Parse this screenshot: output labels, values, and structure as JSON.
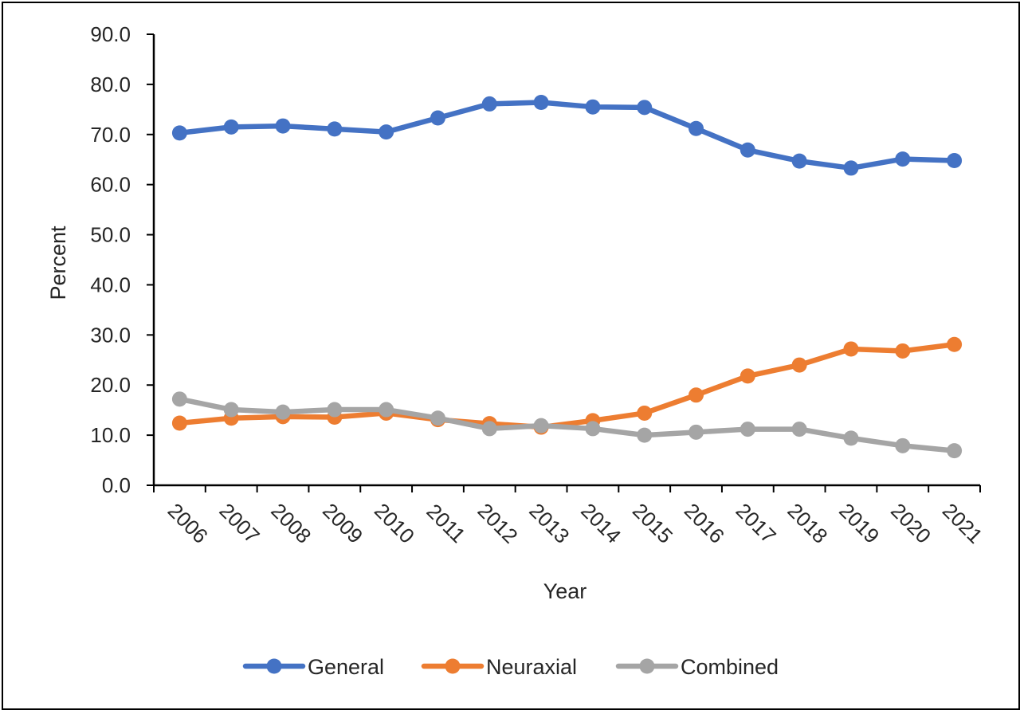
{
  "chart_data": {
    "type": "line",
    "title": "",
    "xlabel": "Year",
    "ylabel": "Percent",
    "ylim": [
      0,
      90
    ],
    "yticks": [
      "0.0",
      "10.0",
      "20.0",
      "30.0",
      "40.0",
      "50.0",
      "60.0",
      "70.0",
      "80.0",
      "90.0"
    ],
    "categories": [
      "2006",
      "2007",
      "2008",
      "2009",
      "2010",
      "2011",
      "2012",
      "2013",
      "2014",
      "2015",
      "2016",
      "2017",
      "2018",
      "2019",
      "2020",
      "2021"
    ],
    "grid": false,
    "legend_position": "bottom",
    "series": [
      {
        "name": "General",
        "color": "#4472C4",
        "values": [
          70.3,
          71.5,
          71.7,
          71.1,
          70.5,
          73.3,
          76.1,
          76.4,
          75.5,
          75.4,
          71.2,
          66.9,
          64.7,
          63.3,
          65.1,
          64.8
        ]
      },
      {
        "name": "Neuraxial",
        "color": "#ED7D31",
        "values": [
          12.4,
          13.4,
          13.7,
          13.6,
          14.4,
          13.1,
          12.3,
          11.6,
          12.9,
          14.4,
          18.0,
          21.8,
          24.0,
          27.2,
          26.8,
          28.1
        ]
      },
      {
        "name": "Combined",
        "color": "#A5A5A5",
        "values": [
          17.2,
          15.1,
          14.6,
          15.1,
          15.1,
          13.4,
          11.3,
          11.9,
          11.3,
          10.0,
          10.6,
          11.2,
          11.2,
          9.4,
          7.9,
          6.9
        ]
      }
    ]
  }
}
